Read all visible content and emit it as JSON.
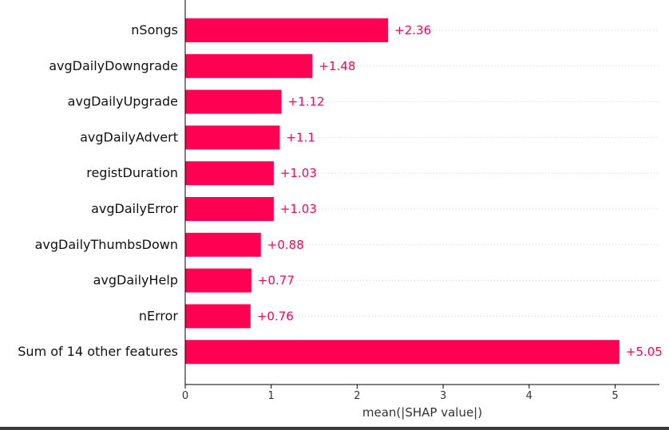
{
  "chart_data": {
    "type": "bar",
    "orientation": "horizontal",
    "categories": [
      "nSongs",
      "avgDailyDowngrade",
      "avgDailyUpgrade",
      "avgDailyAdvert",
      "registDuration",
      "avgDailyError",
      "avgDailyThumbsDown",
      "avgDailyHelp",
      "nError",
      "Sum of 14 other features"
    ],
    "values": [
      2.36,
      1.48,
      1.12,
      1.1,
      1.03,
      1.03,
      0.88,
      0.77,
      0.76,
      5.05
    ],
    "value_labels": [
      "+2.36",
      "+1.48",
      "+1.12",
      "+1.1",
      "+1.03",
      "+1.03",
      "+0.88",
      "+0.77",
      "+0.76",
      "+5.05"
    ],
    "title": "",
    "xlabel": "mean(|SHAP value|)",
    "ylabel": "",
    "xlim": [
      0,
      5.5
    ],
    "xticks": [
      0,
      1,
      2,
      3,
      4,
      5
    ],
    "dotted_guides": true,
    "colors": {
      "bar": "#ff0052",
      "label": "#ff0052",
      "axis": "#000000",
      "guide": "#cccccc",
      "tick_text": "#333333"
    }
  }
}
